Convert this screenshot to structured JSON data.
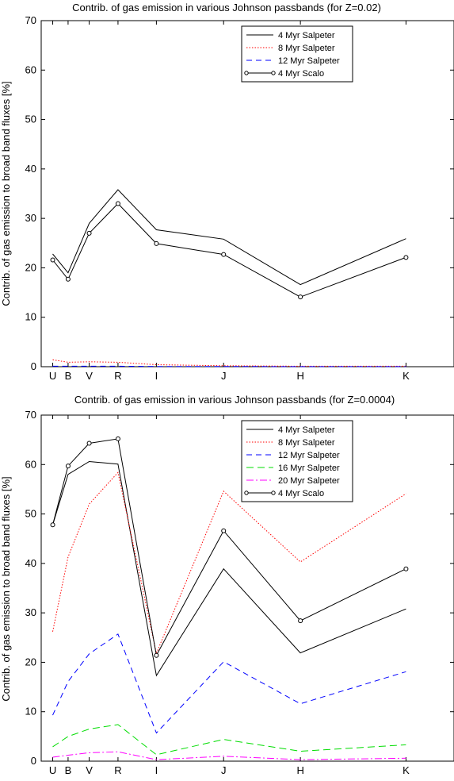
{
  "chart_data": [
    {
      "type": "line",
      "title": "Contrib. of gas emission in various Johnson passbands (for Z=0.02)",
      "xlabel": "",
      "ylabel": "Contrib. of gas emission to broad band fluxes [%]",
      "categories": [
        "U",
        "B",
        "V",
        "R",
        "I",
        "J",
        "H",
        "K"
      ],
      "x": [
        0.36,
        0.44,
        0.55,
        0.7,
        0.9,
        1.25,
        1.65,
        2.2
      ],
      "xlim": [
        0.3,
        2.45
      ],
      "ylim": [
        0,
        70
      ],
      "yticks": [
        0,
        10,
        20,
        30,
        40,
        50,
        60,
        70
      ],
      "legend_position": "top-right",
      "series": [
        {
          "name": "4 Myr Salpeter",
          "color": "#000000",
          "dash": "",
          "marker": false,
          "values": [
            22.8,
            19.0,
            29.0,
            35.8,
            27.7,
            25.8,
            16.6,
            25.9
          ]
        },
        {
          "name": "8 Myr Salpeter",
          "color": "#ff0000",
          "dash": "1.5,2",
          "marker": false,
          "values": [
            1.4,
            0.9,
            1.0,
            0.9,
            0.4,
            0.2,
            0.1,
            0.1
          ]
        },
        {
          "name": "12 Myr Salpeter",
          "color": "#0000ff",
          "dash": "7,5",
          "marker": false,
          "values": [
            0.1,
            0.1,
            0.1,
            0.1,
            0.05,
            0.05,
            0.02,
            0.02
          ]
        },
        {
          "name": "4 Myr Scalo",
          "color": "#000000",
          "dash": "",
          "marker": true,
          "values": [
            21.6,
            17.7,
            27.0,
            33.0,
            24.9,
            22.7,
            14.1,
            22.1
          ]
        }
      ]
    },
    {
      "type": "line",
      "title": "Contrib. of gas emission in various Johnson passbands (for Z=0.0004)",
      "xlabel": "",
      "ylabel": "Contrib. of gas emission to broad band fluxes [%]",
      "categories": [
        "U",
        "B",
        "V",
        "R",
        "I",
        "J",
        "H",
        "K"
      ],
      "x": [
        0.36,
        0.44,
        0.55,
        0.7,
        0.9,
        1.25,
        1.65,
        2.2
      ],
      "xlim": [
        0.3,
        2.45
      ],
      "ylim": [
        0,
        70
      ],
      "yticks": [
        0,
        10,
        20,
        30,
        40,
        50,
        60,
        70
      ],
      "legend_position": "top-right",
      "series": [
        {
          "name": "4 Myr Salpeter",
          "color": "#000000",
          "dash": "",
          "marker": false,
          "values": [
            47.8,
            58.0,
            60.6,
            60.1,
            17.3,
            38.9,
            21.9,
            30.8
          ]
        },
        {
          "name": "8 Myr Salpeter",
          "color": "#ff0000",
          "dash": "1.5,2",
          "marker": false,
          "values": [
            26.2,
            41.3,
            52.0,
            58.4,
            21.8,
            54.6,
            40.3,
            54.1
          ]
        },
        {
          "name": "12 Myr Salpeter",
          "color": "#0000ff",
          "dash": "7,5",
          "marker": false,
          "values": [
            9.3,
            16.1,
            21.7,
            25.7,
            5.7,
            20.1,
            11.6,
            18.1
          ]
        },
        {
          "name": "16 Myr Salpeter",
          "color": "#00dd00",
          "dash": "9,5",
          "marker": false,
          "values": [
            2.9,
            5.0,
            6.5,
            7.4,
            1.3,
            4.4,
            2.0,
            3.3
          ]
        },
        {
          "name": "20 Myr Salpeter",
          "color": "#ff00ff",
          "dash": "9,3,2,3",
          "marker": false,
          "values": [
            0.8,
            1.2,
            1.7,
            1.9,
            0.3,
            1.0,
            0.3,
            0.6
          ]
        },
        {
          "name": "4 Myr Scalo",
          "color": "#000000",
          "dash": "",
          "marker": true,
          "values": [
            47.8,
            59.7,
            64.3,
            65.2,
            21.4,
            46.6,
            28.4,
            38.9
          ]
        }
      ]
    }
  ]
}
